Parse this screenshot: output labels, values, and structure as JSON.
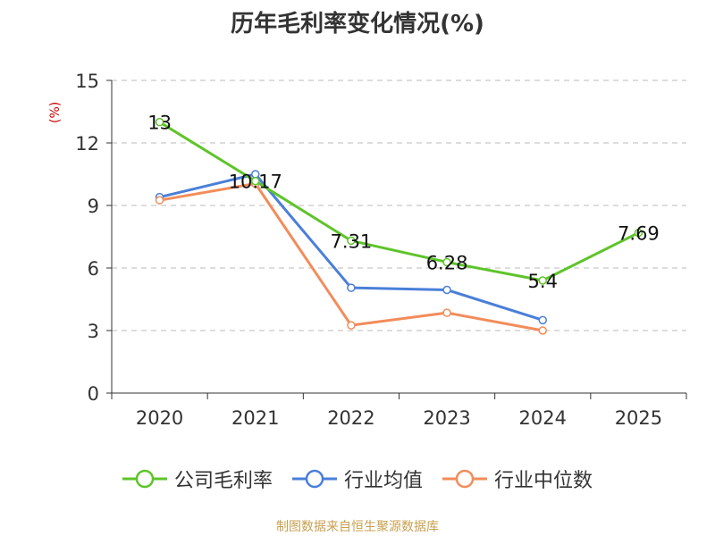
{
  "chart_data": {
    "type": "line",
    "title": "历年毛利率变化情况(%)",
    "ylabel": "(%)",
    "xlabel": "",
    "categories": [
      "2020",
      "2021",
      "2022",
      "2023",
      "2024",
      "2025"
    ],
    "yticks": [
      "0",
      "3",
      "6",
      "9",
      "12",
      "15"
    ],
    "ylim": [
      0,
      15
    ],
    "grid": true,
    "legend_position": "bottom",
    "series": [
      {
        "name": "公司毛利率",
        "color": "#5ec42a",
        "values": [
          13.0,
          10.17,
          7.31,
          6.28,
          5.4,
          7.69
        ],
        "labels": [
          "13",
          "10.17",
          "7.31",
          "6.28",
          "5.4",
          "7.69"
        ]
      },
      {
        "name": "行业均值",
        "color": "#4a7fd9",
        "values": [
          9.4,
          10.5,
          5.05,
          4.95,
          3.5,
          null
        ],
        "labels": []
      },
      {
        "name": "行业中位数",
        "color": "#f28c5a",
        "values": [
          9.25,
          10.05,
          3.25,
          3.85,
          3.0,
          null
        ],
        "labels": []
      }
    ]
  },
  "footer": {
    "source": "制图数据来自恒生聚源数据库"
  }
}
